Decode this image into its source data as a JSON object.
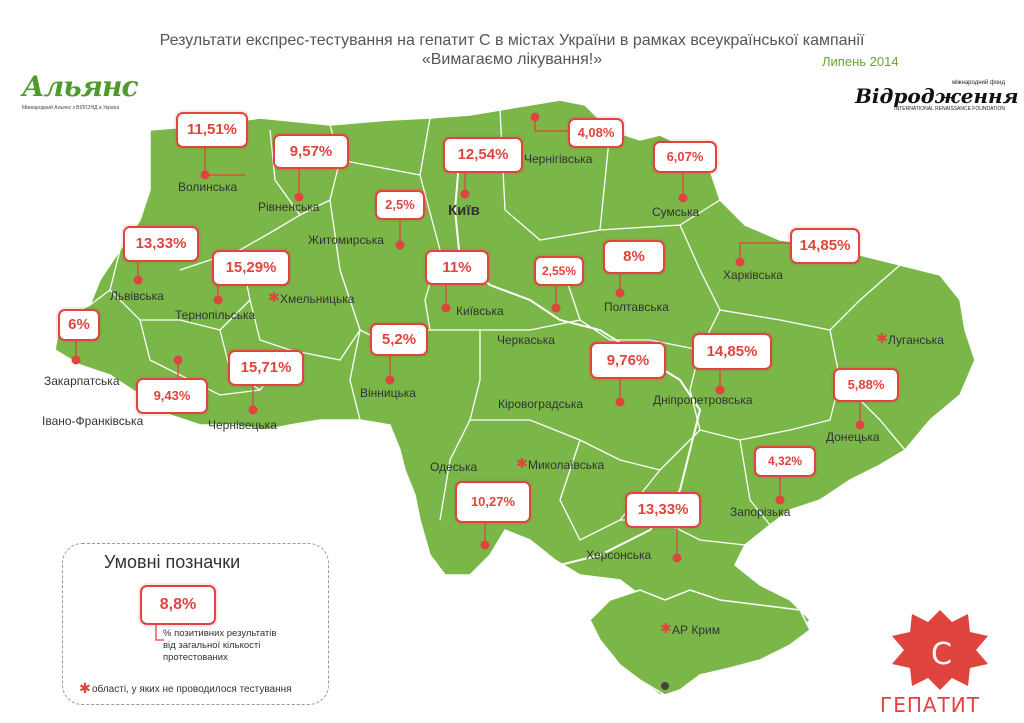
{
  "header": {
    "title_line1": "Результати експрес-тестування на гепатит С в містах України в рамках всеукраїнської кампанії",
    "title_line2": "«Вимагаємо лікування!»",
    "date": "Липень 2014"
  },
  "logos": {
    "alliance_word": "Альянс",
    "alliance_sub": "Міжнародний Альянс з ВІЛ/СНІД в Україні",
    "renaissance_fund": "міжнародний фонд",
    "renaissance_word": "Відродження",
    "renaissance_eng": "INTERNATIONAL RENAISSANCE FOUNDATION",
    "hepatitis_letter": "C",
    "hepatitis_word": "ГЕПАТИТ"
  },
  "colors": {
    "map_fill": "#7ab648",
    "map_border": "#ffffff",
    "accent": "#e0443e",
    "date": "#6aa532"
  },
  "regions": [
    {
      "name": "Волинська",
      "value": "11,51%"
    },
    {
      "name": "Рівненська",
      "value": "9,57%"
    },
    {
      "name": "Житомирська",
      "value": "2,5%"
    },
    {
      "name": "Київ",
      "value": "12,54%"
    },
    {
      "name": "Чернігівська",
      "value": "4,08%"
    },
    {
      "name": "Сумська",
      "value": "6,07%"
    },
    {
      "name": "Львівська",
      "value": "13,33%"
    },
    {
      "name": "Тернопільська",
      "value": "15,29%"
    },
    {
      "name": "Київська",
      "value": "11%"
    },
    {
      "name": "Черкаська",
      "value": "2,55%"
    },
    {
      "name": "Полтавська",
      "value": "8%"
    },
    {
      "name": "Харківська",
      "value": "14,85%"
    },
    {
      "name": "Закарпатська",
      "value": "6%"
    },
    {
      "name": "Івано-Франківська",
      "value": "9,43%"
    },
    {
      "name": "Чернівецька",
      "value": "15,71%"
    },
    {
      "name": "Вінницька",
      "value": "5,2%"
    },
    {
      "name": "Кіровоградська",
      "value": "9,76%"
    },
    {
      "name": "Дніпропетровська",
      "value": "14,85%"
    },
    {
      "name": "Донецька",
      "value": "5,88%"
    },
    {
      "name": "Запорізька",
      "value": "4,32%"
    },
    {
      "name": "Одеська",
      "value": "10,27%"
    },
    {
      "name": "Херсонська",
      "value": "13,33%"
    }
  ],
  "untested_regions": [
    "Хмельницька",
    "Луганська",
    "Миколаївська",
    "АР Крим"
  ],
  "legend": {
    "title": "Умовні позначки",
    "sample_value": "8,8%",
    "desc_line1": "% позитивних результатів",
    "desc_line2": "від загальної кількості",
    "desc_line3": "протестованих",
    "star_text": "області, у яких не проводилося тестування"
  }
}
